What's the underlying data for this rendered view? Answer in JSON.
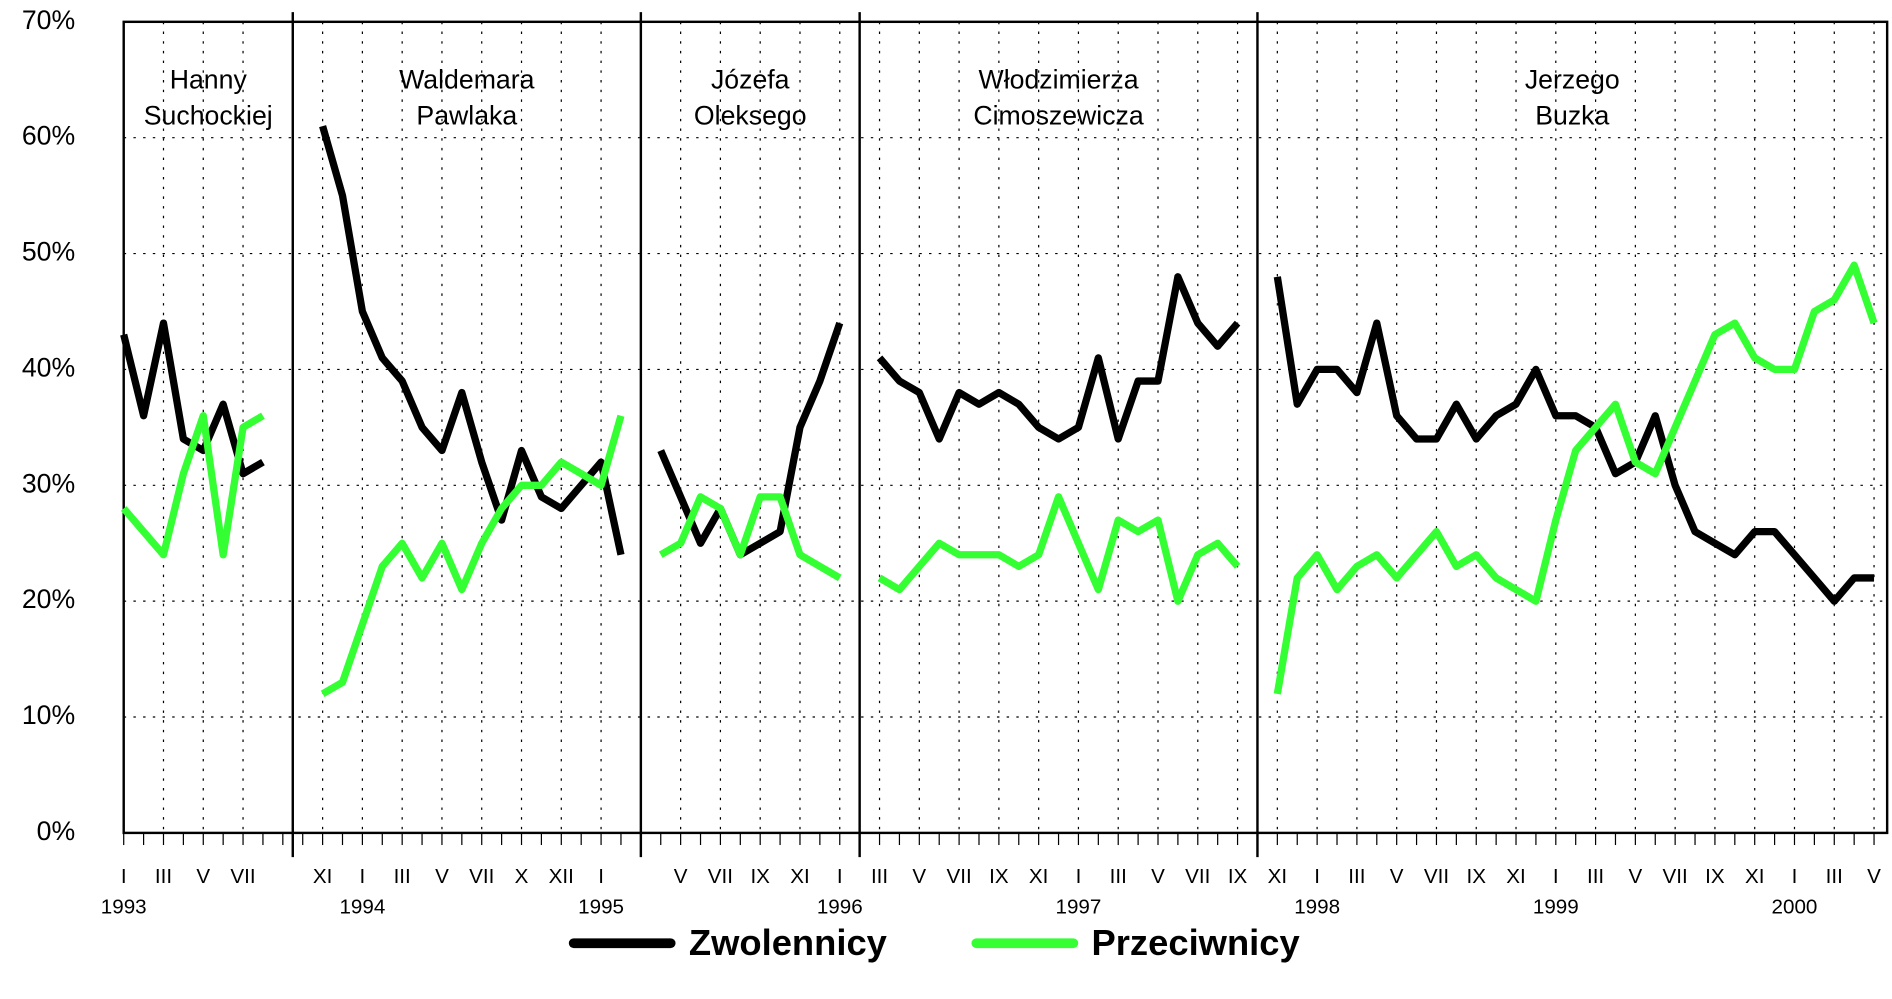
{
  "chart_data": {
    "type": "line",
    "categories": [
      "I",
      null,
      "III",
      null,
      "V",
      null,
      "VII",
      null,
      null,
      null,
      "XI",
      null,
      "I",
      null,
      "III",
      null,
      "V",
      null,
      "VII",
      null,
      "X",
      null,
      "XII",
      null,
      "I",
      null,
      null,
      null,
      "V",
      null,
      "VII",
      null,
      "IX",
      null,
      "XI",
      null,
      "I",
      null,
      "III",
      null,
      "V",
      null,
      "VII",
      null,
      "IX",
      null,
      "XI",
      null,
      "I",
      null,
      "III",
      null,
      "V",
      null,
      "VII",
      null,
      "IX",
      null,
      "XI",
      null,
      "I",
      null,
      "III",
      null,
      "V",
      null,
      "VII",
      null,
      "IX",
      null,
      "XI",
      null,
      "I",
      null,
      "III",
      null,
      "V",
      null,
      "VII",
      null,
      "IX",
      null,
      "XI",
      null,
      "I",
      null,
      "III",
      null,
      "V"
    ],
    "years": [
      "1993",
      null,
      null,
      null,
      null,
      null,
      null,
      null,
      null,
      null,
      null,
      null,
      "1994",
      null,
      null,
      null,
      null,
      null,
      null,
      null,
      null,
      null,
      null,
      null,
      "1995",
      null,
      null,
      null,
      null,
      null,
      null,
      null,
      null,
      null,
      null,
      null,
      "1996",
      null,
      null,
      null,
      null,
      null,
      null,
      null,
      null,
      null,
      null,
      null,
      "1997",
      null,
      null,
      null,
      null,
      null,
      null,
      null,
      null,
      null,
      null,
      null,
      "1998",
      null,
      null,
      null,
      null,
      null,
      null,
      null,
      null,
      null,
      null,
      null,
      "1999",
      null,
      null,
      null,
      null,
      null,
      null,
      null,
      null,
      null,
      null,
      null,
      "2000",
      null,
      null,
      null,
      null
    ],
    "series": [
      {
        "name": "Zwolennicy",
        "color": "#000000",
        "values": [
          43,
          36,
          44,
          34,
          33,
          37,
          31,
          32,
          null,
          null,
          61,
          55,
          45,
          41,
          39,
          35,
          33,
          38,
          32,
          27,
          33,
          29,
          28,
          30,
          32,
          24,
          null,
          33,
          29,
          25,
          28,
          24,
          25,
          26,
          35,
          39,
          44,
          null,
          41,
          39,
          38,
          34,
          38,
          37,
          38,
          37,
          35,
          34,
          35,
          41,
          34,
          39,
          39,
          48,
          44,
          42,
          44,
          null,
          48,
          37,
          40,
          40,
          38,
          44,
          36,
          34,
          34,
          37,
          34,
          36,
          37,
          40,
          36,
          36,
          35,
          31,
          32,
          36,
          30,
          26,
          25,
          24,
          26,
          26,
          24,
          22,
          20,
          22,
          22
        ]
      },
      {
        "name": "Przeciwnicy",
        "color": "#33ff33",
        "values": [
          28,
          26,
          24,
          31,
          36,
          24,
          35,
          36,
          null,
          null,
          12,
          13,
          18,
          23,
          25,
          22,
          25,
          21,
          25,
          28,
          30,
          30,
          32,
          31,
          30,
          36,
          null,
          24,
          25,
          29,
          28,
          24,
          29,
          29,
          24,
          23,
          22,
          null,
          22,
          21,
          23,
          25,
          24,
          24,
          24,
          23,
          24,
          29,
          25,
          21,
          27,
          26,
          27,
          20,
          24,
          25,
          23,
          null,
          12,
          22,
          24,
          21,
          23,
          24,
          22,
          24,
          26,
          23,
          24,
          22,
          21,
          20,
          27,
          33,
          35,
          37,
          32,
          31,
          35,
          39,
          43,
          44,
          41,
          40,
          40,
          45,
          46,
          49,
          44
        ]
      }
    ],
    "annotations": [
      [
        "Hanny",
        "Suchockiej"
      ],
      [
        "Waldemara",
        "Pawlaka"
      ],
      [
        "Józefa",
        "Oleksego"
      ],
      [
        "Włodzimierza",
        "Cimoszewicza"
      ],
      [
        "Jerzego",
        "Buzka"
      ]
    ],
    "ylim": [
      0,
      70
    ],
    "yticks": [
      {
        "value": 0,
        "label": "0%"
      },
      {
        "value": 10,
        "label": "10%"
      },
      {
        "value": 20,
        "label": "20%"
      },
      {
        "value": 30,
        "label": "30%"
      },
      {
        "value": 40,
        "label": "40%"
      },
      {
        "value": 50,
        "label": "50%"
      },
      {
        "value": 60,
        "label": "60%"
      },
      {
        "value": 70,
        "label": "70%"
      }
    ],
    "grid": true,
    "legend": "bottom"
  }
}
